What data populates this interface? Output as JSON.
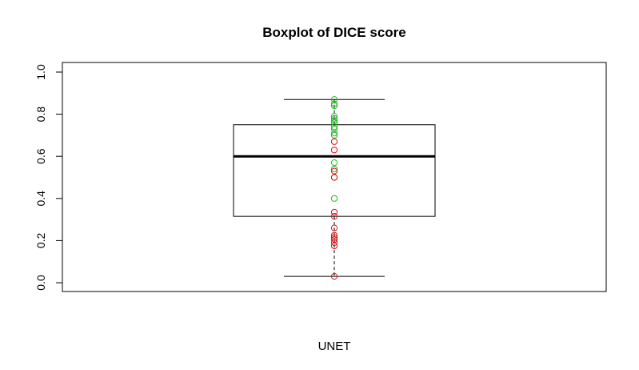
{
  "chart_data": {
    "type": "boxplot",
    "title": "Boxplot of DICE score",
    "xlabel": "UNET",
    "ylabel": "",
    "ylim": [
      0,
      1
    ],
    "yticks": [
      "0.0",
      "0.2",
      "0.4",
      "0.6",
      "0.8",
      "1.0"
    ],
    "grid": false,
    "box": {
      "category": "UNET",
      "whisker_low": 0.03,
      "q1": 0.315,
      "median": 0.6,
      "q3": 0.75,
      "whisker_high": 0.87
    },
    "series": [
      {
        "color": "#22bb22",
        "values": [
          0.87,
          0.85,
          0.84,
          0.79,
          0.78,
          0.77,
          0.76,
          0.74,
          0.73,
          0.71,
          0.7,
          0.57,
          0.54,
          0.4
        ]
      },
      {
        "color": "#dd1111",
        "values": [
          0.67,
          0.63,
          0.53,
          0.5,
          0.5,
          0.335,
          0.315,
          0.26,
          0.225,
          0.215,
          0.205,
          0.19,
          0.175,
          0.03
        ]
      }
    ]
  }
}
